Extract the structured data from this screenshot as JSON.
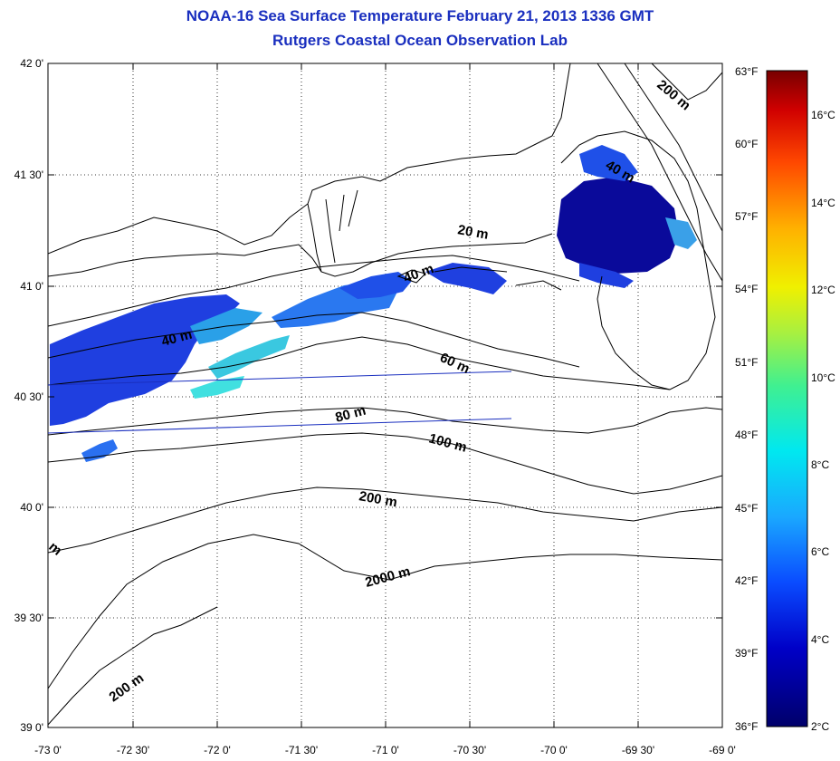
{
  "title_line1": "NOAA-16 Sea Surface Temperature February 21, 2013 1336 GMT",
  "title_line2": "Rutgers Coastal Ocean Observation Lab",
  "lat_ticks": [
    "42 0'",
    "41 30'",
    "41 0'",
    "40 30'",
    "40 0'",
    "39 30'",
    "39 0'"
  ],
  "lon_ticks": [
    "-73 0'",
    "-72 30'",
    "-72 0'",
    "-71 30'",
    "-71 0'",
    "-70 30'",
    "-70 0'",
    "-69 30'",
    "-69 0'"
  ],
  "fahrenheit_ticks": [
    "63°F",
    "60°F",
    "57°F",
    "54°F",
    "51°F",
    "48°F",
    "45°F",
    "42°F",
    "39°F",
    "36°F"
  ],
  "celsius_ticks": [
    "16°C",
    "14°C",
    "12°C",
    "10°C",
    "8°C",
    "6°C",
    "4°C",
    "2°C"
  ],
  "contour_labels": [
    "200 m",
    "40 m",
    "20 m",
    "40 m",
    "40 m",
    "60 m",
    "80 m",
    "100 m",
    "200 m",
    "2000 m",
    "200 m",
    "m"
  ],
  "colors": {
    "title": "#1a2fbf",
    "sst_cold": "#0a0a9a",
    "sst_blue": "#1f3fe0",
    "sst_light": "#2fb8e8",
    "sst_cyan": "#40e0e0"
  }
}
